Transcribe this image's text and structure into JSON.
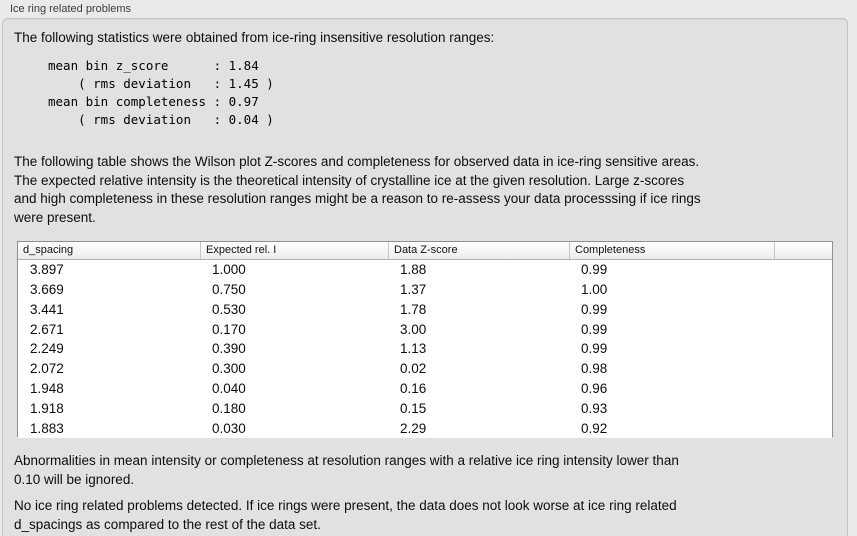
{
  "panel": {
    "title": "Ice ring related problems",
    "intro": "The following statistics were obtained from ice-ring insensitive resolution ranges:",
    "stats_text": "mean bin z_score      : 1.84\n    ( rms deviation   : 1.45 )\nmean bin completeness : 0.97\n    ( rms deviation   : 0.04 )",
    "table_description": [
      "The following table shows the Wilson plot Z-scores and completeness for observed data in ice-ring sensitive areas.",
      "The expected relative intensity is the theoretical intensity of crystalline ice at the given resolution. Large z-scores",
      "and high completeness in these resolution ranges might be a reason to re-assess your data processsing if ice rings",
      "were present."
    ],
    "ignore_note": [
      "Abnormalities in mean intensity or completeness at resolution ranges with a relative ice ring intensity lower than",
      "0.10 will be ignored."
    ],
    "conclusion": [
      "No ice ring related problems detected. If ice rings were present, the data does not look worse at ice ring related",
      "d_spacings as compared to the rest of the data set."
    ]
  },
  "table": {
    "columns": [
      "d_spacing",
      "Expected rel. I",
      "Data Z-score",
      "Completeness"
    ],
    "rows": [
      [
        "3.897",
        "1.000",
        "1.88",
        "0.99"
      ],
      [
        "3.669",
        "0.750",
        "1.37",
        "1.00"
      ],
      [
        "3.441",
        "0.530",
        "1.78",
        "0.99"
      ],
      [
        "2.671",
        "0.170",
        "3.00",
        "0.99"
      ],
      [
        "2.249",
        "0.390",
        "1.13",
        "0.99"
      ],
      [
        "2.072",
        "0.300",
        "0.02",
        "0.98"
      ],
      [
        "1.948",
        "0.040",
        "0.16",
        "0.96"
      ],
      [
        "1.918",
        "0.180",
        "0.15",
        "0.93"
      ],
      [
        "1.883",
        "0.030",
        "2.29",
        "0.92"
      ]
    ]
  },
  "colors": {
    "page_bg": "#eaeaea",
    "panel_bg": "#e1e1e1",
    "panel_border": "#c3c3c3",
    "table_border": "#909090",
    "header_divider": "#c6c6c6"
  }
}
